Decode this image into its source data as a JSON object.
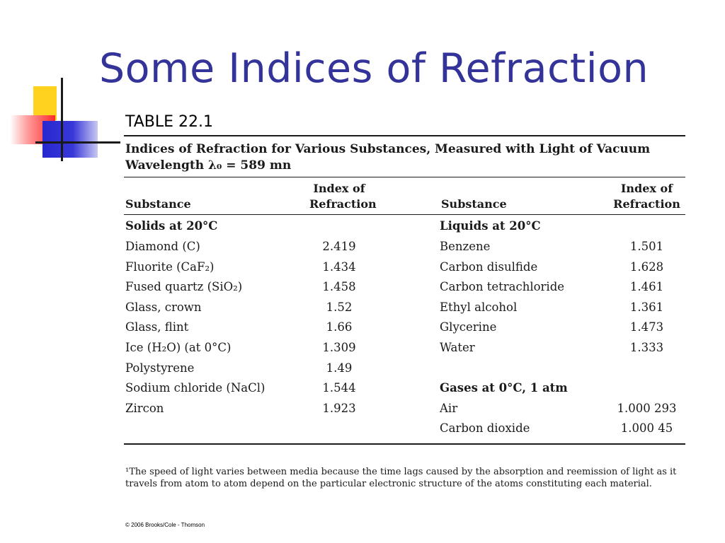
{
  "slide": {
    "title": "Some Indices of Refraction"
  },
  "table": {
    "label": "TABLE 22.1",
    "caption_line1": "Indices of Refraction for Various Substances, Measured with Light of Vacuum",
    "caption_line2": "Wavelength λ₀ = 589 mn",
    "headers": {
      "substance": "Substance",
      "index_line1": "Index of",
      "index_line2": "Refraction"
    },
    "sections": {
      "solids": "Solids at 20°C",
      "liquids": "Liquids at 20°C",
      "gases": "Gases at 0°C, 1 atm"
    },
    "solids": [
      {
        "name": "Diamond (C)",
        "value": "2.419"
      },
      {
        "name": "Fluorite (CaF₂)",
        "value": "1.434"
      },
      {
        "name": "Fused quartz (SiO₂)",
        "value": "1.458"
      },
      {
        "name": "Glass, crown",
        "value": "1.52"
      },
      {
        "name": "Glass, flint",
        "value": "1.66"
      },
      {
        "name": "Ice (H₂O) (at 0°C)",
        "value": "1.309"
      },
      {
        "name": "Polystyrene",
        "value": "1.49"
      },
      {
        "name": "Sodium chloride (NaCl)",
        "value": "1.544"
      },
      {
        "name": "Zircon",
        "value": "1.923"
      }
    ],
    "liquids": [
      {
        "name": "Benzene",
        "value": "1.501"
      },
      {
        "name": "Carbon disulfide",
        "value": "1.628"
      },
      {
        "name": "Carbon tetrachloride",
        "value": "1.461"
      },
      {
        "name": "Ethyl alcohol",
        "value": "1.361"
      },
      {
        "name": "Glycerine",
        "value": "1.473"
      },
      {
        "name": "Water",
        "value": "1.333"
      }
    ],
    "gases": [
      {
        "name": "Air",
        "value": "1.000 293"
      },
      {
        "name": "Carbon dioxide",
        "value": "1.000 45"
      }
    ],
    "footnote": "¹The speed of light varies between media because the time lags caused by the absorption and reemission of light as it travels from atom to atom depend on the particular electronic structure of the atoms constituting each material."
  },
  "copyright": "© 2006 Brooks/Cole - Thomson",
  "colors": {
    "title": "#333399",
    "deco_yellow": "#ffd21f",
    "deco_red": "#ff2a2a",
    "deco_blue": "#2727d0"
  }
}
